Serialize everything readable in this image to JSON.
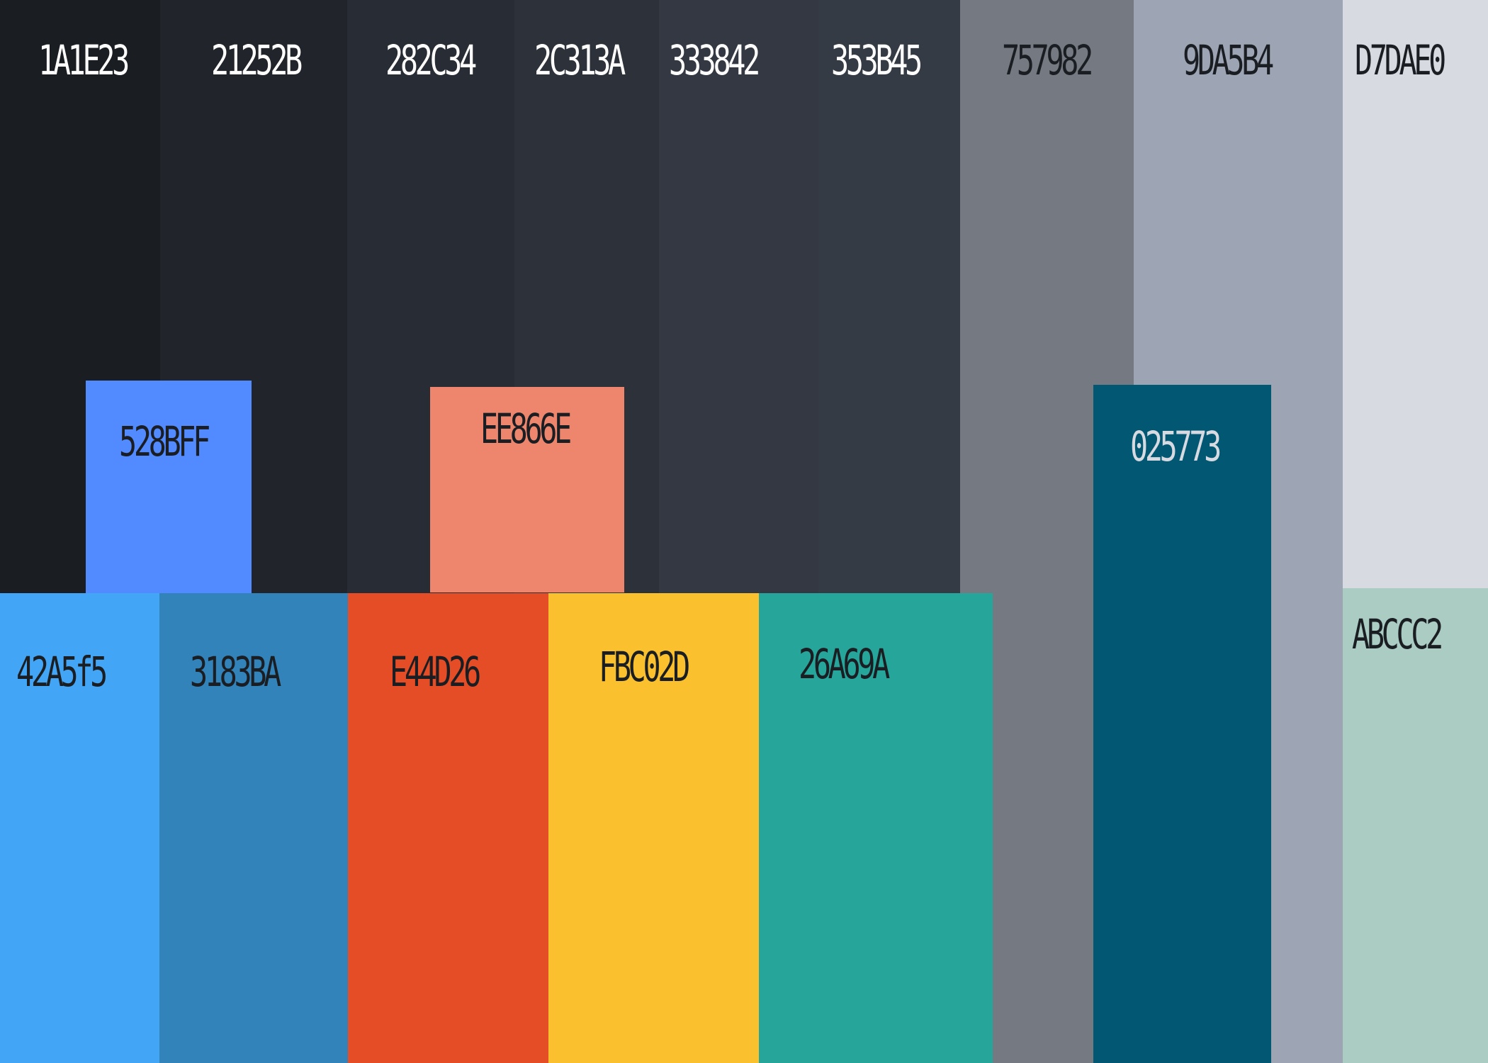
{
  "palette": {
    "swatches": [
      {
        "id": "s-1a1e23",
        "label": "1A1E23",
        "color": "#1A1E23",
        "text_color": "#FFFFFF"
      },
      {
        "id": "s-21252b",
        "label": "21252B",
        "color": "#21252B",
        "text_color": "#FFFFFF"
      },
      {
        "id": "s-282c34",
        "label": "282C34",
        "color": "#282C34",
        "text_color": "#FFFFFF"
      },
      {
        "id": "s-2c313a",
        "label": "2C313A",
        "color": "#2C313A",
        "text_color": "#FFFFFF"
      },
      {
        "id": "s-333842",
        "label": "333842",
        "color": "#333842",
        "text_color": "#FFFFFF"
      },
      {
        "id": "s-353b45",
        "label": "353B45",
        "color": "#353B45",
        "text_color": "#FFFFFF"
      },
      {
        "id": "s-757982",
        "label": "757982",
        "color": "#757982",
        "text_color": "#1A1E23"
      },
      {
        "id": "s-9da5b4",
        "label": "9DA5B4",
        "color": "#9DA5B4",
        "text_color": "#1A1E23"
      },
      {
        "id": "s-d7dae0",
        "label": "D7DAE0",
        "color": "#D7DAE0",
        "text_color": "#1A1E23"
      },
      {
        "id": "s-528bff",
        "label": "528BFF",
        "color": "#528BFF",
        "text_color": "#1A1E23"
      },
      {
        "id": "s-ee866e",
        "label": "EE866E",
        "color": "#EE866E",
        "text_color": "#1A1E23"
      },
      {
        "id": "s-025773",
        "label": "025773",
        "color": "#025773",
        "text_color": "#D7DAE0"
      },
      {
        "id": "s-42a5f5",
        "label": "42A5f5",
        "color": "#42A5F5",
        "text_color": "#1A1E23"
      },
      {
        "id": "s-3183ba",
        "label": "3183BA",
        "color": "#3183BA",
        "text_color": "#1A1E23"
      },
      {
        "id": "s-e44d26",
        "label": "E44D26",
        "color": "#E44D26",
        "text_color": "#1A1E23"
      },
      {
        "id": "s-fbc02d",
        "label": "FBC02D",
        "color": "#FBC02D",
        "text_color": "#1A1E23"
      },
      {
        "id": "s-26a69a",
        "label": "26A69A",
        "color": "#26A69A",
        "text_color": "#1A1E23"
      },
      {
        "id": "s-abccc2",
        "label": "ABCCC2",
        "color": "#ABCCC2",
        "text_color": "#1A1E23"
      }
    ]
  }
}
